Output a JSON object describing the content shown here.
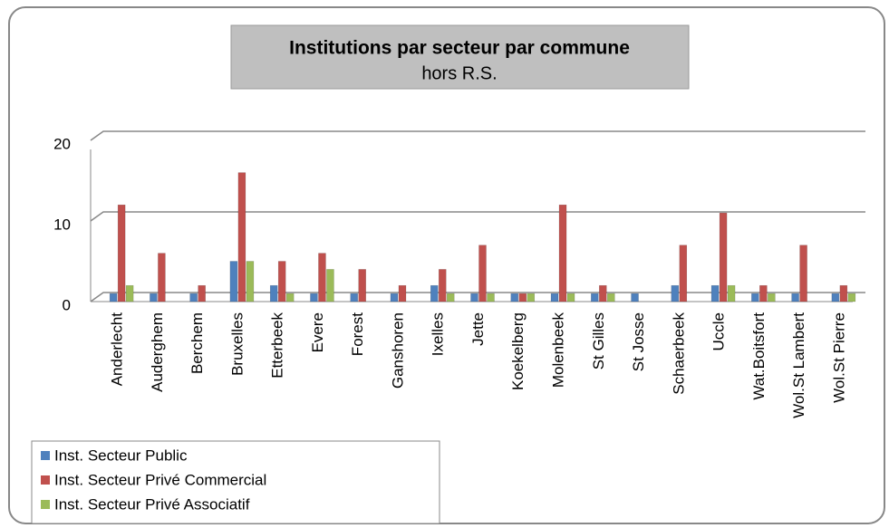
{
  "chart_data": {
    "type": "bar",
    "title": "Institutions par secteur par commune",
    "subtitle": "hors R.S.",
    "categories": [
      "Anderlecht",
      "Auderghem",
      "Berchem",
      "Bruxelles",
      "Etterbeek",
      "Evere",
      "Forest",
      "Ganshoren",
      "Ixelles",
      "Jette",
      "Koekelberg",
      "Molenbeek",
      "St Gilles",
      "St Josse",
      "Schaerbeek",
      "Uccle",
      "Wat.Boitsfort",
      "Wol.St Lambert",
      "Wol.St Pierre"
    ],
    "series": [
      {
        "name": "Inst. Secteur Public",
        "color": "#4f81bd",
        "values": [
          1,
          1,
          1,
          5,
          2,
          1,
          1,
          1,
          2,
          1,
          1,
          1,
          1,
          1,
          2,
          2,
          1,
          1,
          1
        ]
      },
      {
        "name": "Inst. Secteur Privé Commercial",
        "color": "#c0504d",
        "values": [
          12,
          6,
          2,
          16,
          5,
          6,
          4,
          2,
          4,
          7,
          1,
          12,
          2,
          0,
          7,
          11,
          2,
          7,
          2
        ]
      },
      {
        "name": "Inst. Secteur Privé Associatif",
        "color": "#9bbb59",
        "values": [
          2,
          0,
          0,
          5,
          1,
          4,
          0,
          0,
          1,
          1,
          1,
          1,
          1,
          0,
          0,
          2,
          1,
          0,
          1
        ]
      }
    ],
    "ylim": [
      0,
      20
    ],
    "yticks": [
      0,
      10,
      20
    ],
    "grid": true
  }
}
